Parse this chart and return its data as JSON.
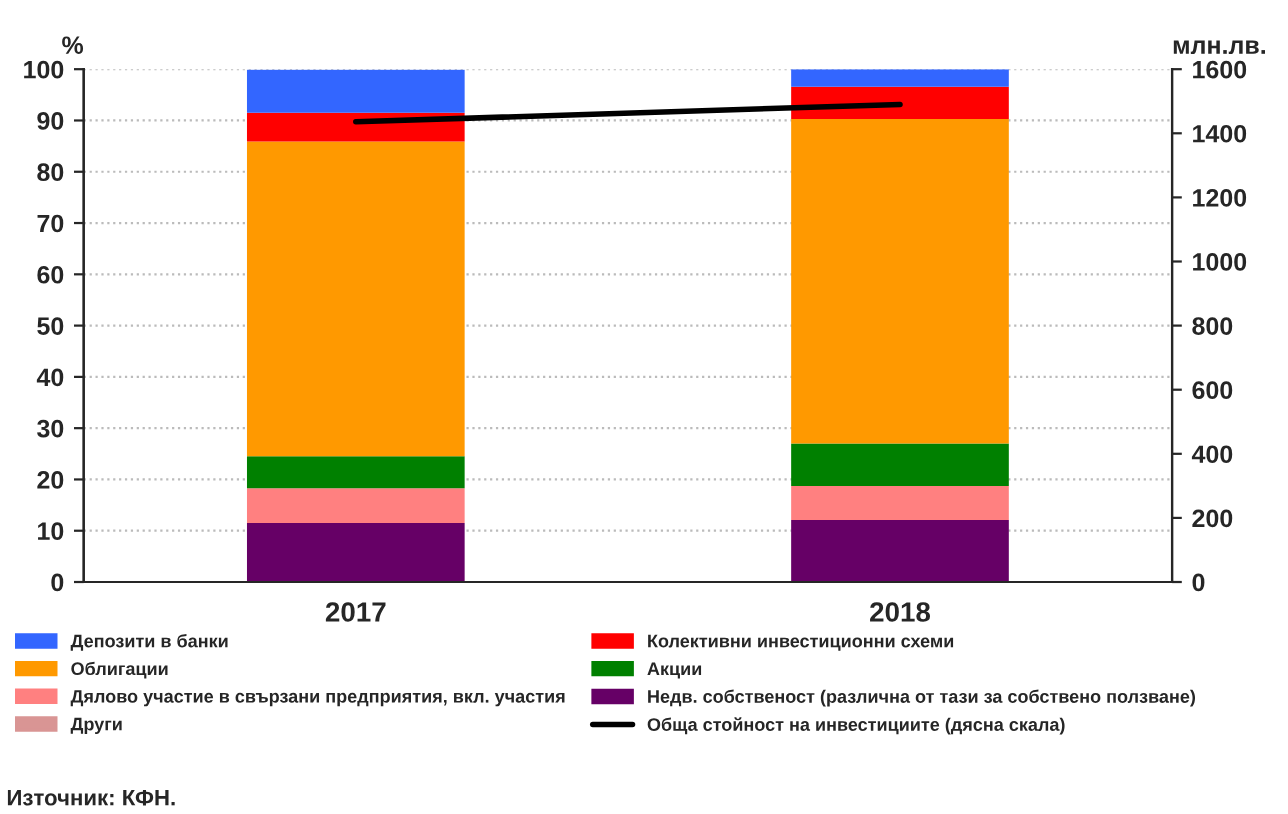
{
  "chart_data": {
    "type": "bar",
    "stacked": true,
    "ylabel": "%",
    "y2label": "млн.лв.",
    "categories": [
      "2017",
      "2018"
    ],
    "series": [
      {
        "name": "Други",
        "color": "#d99594",
        "values": [
          0,
          0
        ]
      },
      {
        "name": "Недв. собственост (различна от тази за собствено ползване)",
        "color": "#660066",
        "values": [
          11.5,
          12.1
        ]
      },
      {
        "name": "Дялово участие в свързани предприятия, вкл. участия",
        "color": "#ff8080",
        "values": [
          6.8,
          6.6
        ]
      },
      {
        "name": "Акции",
        "color": "#008000",
        "values": [
          6.2,
          8.3
        ]
      },
      {
        "name": "Облигации",
        "color": "#ff9900",
        "values": [
          61.4,
          63.3
        ]
      },
      {
        "name": "Колективни инвестиционни схеми",
        "color": "#ff0000",
        "values": [
          5.6,
          6.3
        ]
      },
      {
        "name": "Депозити в банки",
        "color": "#3366ff",
        "values": [
          8.4,
          3.4
        ]
      },
      {
        "name": "Обща стойност на инвестициите (дясна скала)",
        "type": "line",
        "axis": "y2",
        "color": "#000000",
        "values": [
          1436,
          1490
        ]
      }
    ],
    "ylim": [
      0,
      100
    ],
    "yticks": [
      0,
      10,
      20,
      30,
      40,
      50,
      60,
      70,
      80,
      90,
      100
    ],
    "y2lim": [
      0,
      1600
    ],
    "y2ticks": [
      0,
      200,
      400,
      600,
      800,
      1000,
      1200,
      1400,
      1600
    ],
    "grid": "y",
    "legend": "bottom",
    "marker": "none",
    "line_style": "solid",
    "annotations": [
      "Източник: КФН."
    ]
  }
}
